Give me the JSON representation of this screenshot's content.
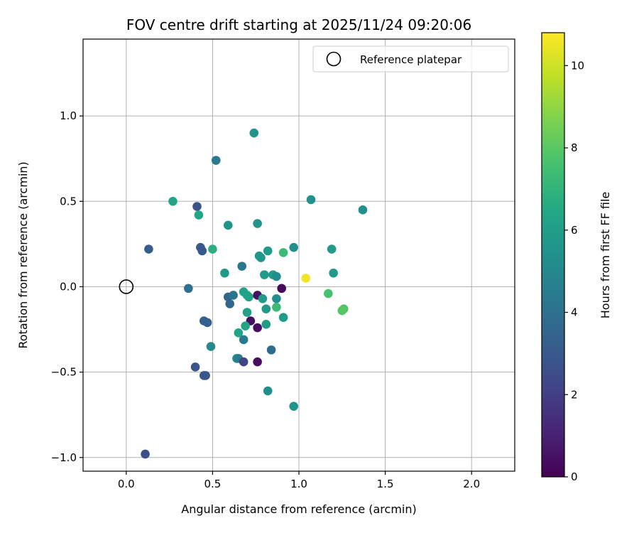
{
  "chart_data": {
    "type": "scatter",
    "title": "FOV centre drift starting at 2025/11/24 09:20:06",
    "xlabel": "Angular distance from reference (arcmin)",
    "ylabel": "Rotation from reference (arcmin)",
    "xlim": [
      -0.25,
      2.25
    ],
    "ylim": [
      -1.08,
      1.45
    ],
    "xticks": [
      0.0,
      0.5,
      1.0,
      1.5,
      2.0
    ],
    "xtick_labels": [
      "0.0",
      "0.5",
      "1.0",
      "1.5",
      "2.0"
    ],
    "yticks": [
      -1.0,
      -0.5,
      0.0,
      0.5,
      1.0
    ],
    "ytick_labels": [
      "−1.0",
      "−0.5",
      "0.0",
      "0.5",
      "1.0"
    ],
    "grid": true,
    "legend": {
      "position": "top-right",
      "entries": [
        "Reference platepar"
      ]
    },
    "reference_point": {
      "x": 0.0,
      "y": 0.0,
      "label": "Reference platepar"
    },
    "colorbar": {
      "label": "Hours from first FF file",
      "range": [
        0,
        10.8
      ],
      "ticks": [
        0,
        2,
        4,
        6,
        8,
        10
      ],
      "tick_labels": [
        "0",
        "2",
        "4",
        "6",
        "8",
        "10"
      ],
      "colormap": "viridis"
    },
    "points": [
      {
        "x": 0.74,
        "y": 0.9,
        "h": 5.6
      },
      {
        "x": 0.52,
        "y": 0.74,
        "h": 4.4
      },
      {
        "x": 0.27,
        "y": 0.5,
        "h": 6.3
      },
      {
        "x": 0.41,
        "y": 0.47,
        "h": 2.7
      },
      {
        "x": 0.42,
        "y": 0.42,
        "h": 6.4
      },
      {
        "x": 1.07,
        "y": 0.51,
        "h": 5.5
      },
      {
        "x": 1.37,
        "y": 0.45,
        "h": 5.3
      },
      {
        "x": 0.59,
        "y": 0.36,
        "h": 5.6
      },
      {
        "x": 0.76,
        "y": 0.37,
        "h": 5.6
      },
      {
        "x": 0.13,
        "y": 0.22,
        "h": 3.2
      },
      {
        "x": 0.43,
        "y": 0.23,
        "h": 3.0
      },
      {
        "x": 0.44,
        "y": 0.21,
        "h": 3.0
      },
      {
        "x": 0.5,
        "y": 0.22,
        "h": 6.8
      },
      {
        "x": 0.77,
        "y": 0.18,
        "h": 5.7
      },
      {
        "x": 0.78,
        "y": 0.17,
        "h": 5.7
      },
      {
        "x": 0.82,
        "y": 0.21,
        "h": 5.8
      },
      {
        "x": 0.91,
        "y": 0.2,
        "h": 7.3
      },
      {
        "x": 0.97,
        "y": 0.23,
        "h": 5.3
      },
      {
        "x": 1.19,
        "y": 0.22,
        "h": 5.8
      },
      {
        "x": 0.67,
        "y": 0.12,
        "h": 4.3
      },
      {
        "x": 0.57,
        "y": 0.08,
        "h": 5.8
      },
      {
        "x": 0.8,
        "y": 0.07,
        "h": 5.8
      },
      {
        "x": 0.85,
        "y": 0.07,
        "h": 5.8
      },
      {
        "x": 0.87,
        "y": 0.06,
        "h": 5.2
      },
      {
        "x": 1.2,
        "y": 0.08,
        "h": 5.8
      },
      {
        "x": 1.04,
        "y": 0.05,
        "h": 10.6
      },
      {
        "x": 0.36,
        "y": -0.01,
        "h": 4.0
      },
      {
        "x": 0.9,
        "y": -0.01,
        "h": 0.3
      },
      {
        "x": 0.59,
        "y": -0.06,
        "h": 3.6
      },
      {
        "x": 0.62,
        "y": -0.05,
        "h": 4.2
      },
      {
        "x": 0.68,
        "y": -0.03,
        "h": 6.2
      },
      {
        "x": 0.7,
        "y": -0.05,
        "h": 6.2
      },
      {
        "x": 0.71,
        "y": -0.06,
        "h": 6.2
      },
      {
        "x": 0.76,
        "y": -0.05,
        "h": 0.5
      },
      {
        "x": 0.79,
        "y": -0.07,
        "h": 5.9
      },
      {
        "x": 0.87,
        "y": -0.07,
        "h": 5.3
      },
      {
        "x": 1.17,
        "y": -0.04,
        "h": 7.6
      },
      {
        "x": 0.6,
        "y": -0.1,
        "h": 3.6
      },
      {
        "x": 0.81,
        "y": -0.13,
        "h": 5.8
      },
      {
        "x": 0.87,
        "y": -0.12,
        "h": 7.3
      },
      {
        "x": 1.26,
        "y": -0.13,
        "h": 7.8
      },
      {
        "x": 1.25,
        "y": -0.14,
        "h": 7.9
      },
      {
        "x": 0.7,
        "y": -0.15,
        "h": 6.2
      },
      {
        "x": 0.45,
        "y": -0.2,
        "h": 3.3
      },
      {
        "x": 0.47,
        "y": -0.21,
        "h": 3.3
      },
      {
        "x": 0.72,
        "y": -0.2,
        "h": 0.4
      },
      {
        "x": 0.91,
        "y": -0.18,
        "h": 5.9
      },
      {
        "x": 0.69,
        "y": -0.23,
        "h": 6.3
      },
      {
        "x": 0.76,
        "y": -0.24,
        "h": 0.4
      },
      {
        "x": 0.81,
        "y": -0.22,
        "h": 5.9
      },
      {
        "x": 0.65,
        "y": -0.27,
        "h": 6.2
      },
      {
        "x": 0.68,
        "y": -0.31,
        "h": 4.4
      },
      {
        "x": 0.49,
        "y": -0.35,
        "h": 5.1
      },
      {
        "x": 0.84,
        "y": -0.37,
        "h": 3.8
      },
      {
        "x": 0.64,
        "y": -0.42,
        "h": 5.3
      },
      {
        "x": 0.65,
        "y": -0.42,
        "h": 4.5
      },
      {
        "x": 0.68,
        "y": -0.44,
        "h": 2.2
      },
      {
        "x": 0.76,
        "y": -0.44,
        "h": 0.4
      },
      {
        "x": 0.4,
        "y": -0.47,
        "h": 2.8
      },
      {
        "x": 0.45,
        "y": -0.52,
        "h": 2.9
      },
      {
        "x": 0.46,
        "y": -0.52,
        "h": 2.9
      },
      {
        "x": 0.82,
        "y": -0.61,
        "h": 5.3
      },
      {
        "x": 0.97,
        "y": -0.7,
        "h": 5.6
      },
      {
        "x": 0.11,
        "y": -0.98,
        "h": 2.6
      }
    ]
  }
}
